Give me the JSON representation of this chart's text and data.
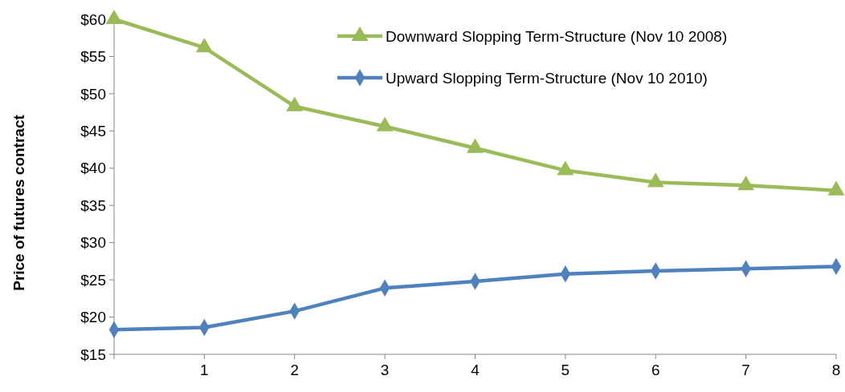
{
  "chart_data": {
    "type": "line",
    "ylabel": "Price of futures contract",
    "categories": [
      null,
      "1",
      "2",
      "3",
      "4",
      "5",
      "6",
      "7",
      "8"
    ],
    "series": [
      {
        "name": "Downward Slopping Term-Structure (Nov 10 2008)",
        "color": "#9bbb59",
        "marker": "triangle",
        "values": [
          60,
          56.2,
          48.3,
          45.6,
          42.7,
          39.7,
          38.1,
          37.7,
          37.0
        ]
      },
      {
        "name": "Upward Slopping Term-Structure (Nov 10 2010)",
        "color": "#4f81bd",
        "marker": "diamond",
        "values": [
          18.3,
          18.6,
          20.8,
          23.9,
          24.8,
          25.8,
          26.2,
          26.5,
          26.8
        ]
      }
    ],
    "ylim": [
      15,
      60
    ],
    "yticks": [
      {
        "value": 15,
        "label": "$15"
      },
      {
        "value": 20,
        "label": "$20"
      },
      {
        "value": 25,
        "label": "$25"
      },
      {
        "value": 30,
        "label": "$30"
      },
      {
        "value": 35,
        "label": "$35"
      },
      {
        "value": 40,
        "label": "$40"
      },
      {
        "value": 45,
        "label": "$45"
      },
      {
        "value": 50,
        "label": "$50"
      },
      {
        "value": 55,
        "label": "$55"
      },
      {
        "value": 60,
        "label": "$60"
      }
    ],
    "legend": "top right",
    "grid": false
  }
}
